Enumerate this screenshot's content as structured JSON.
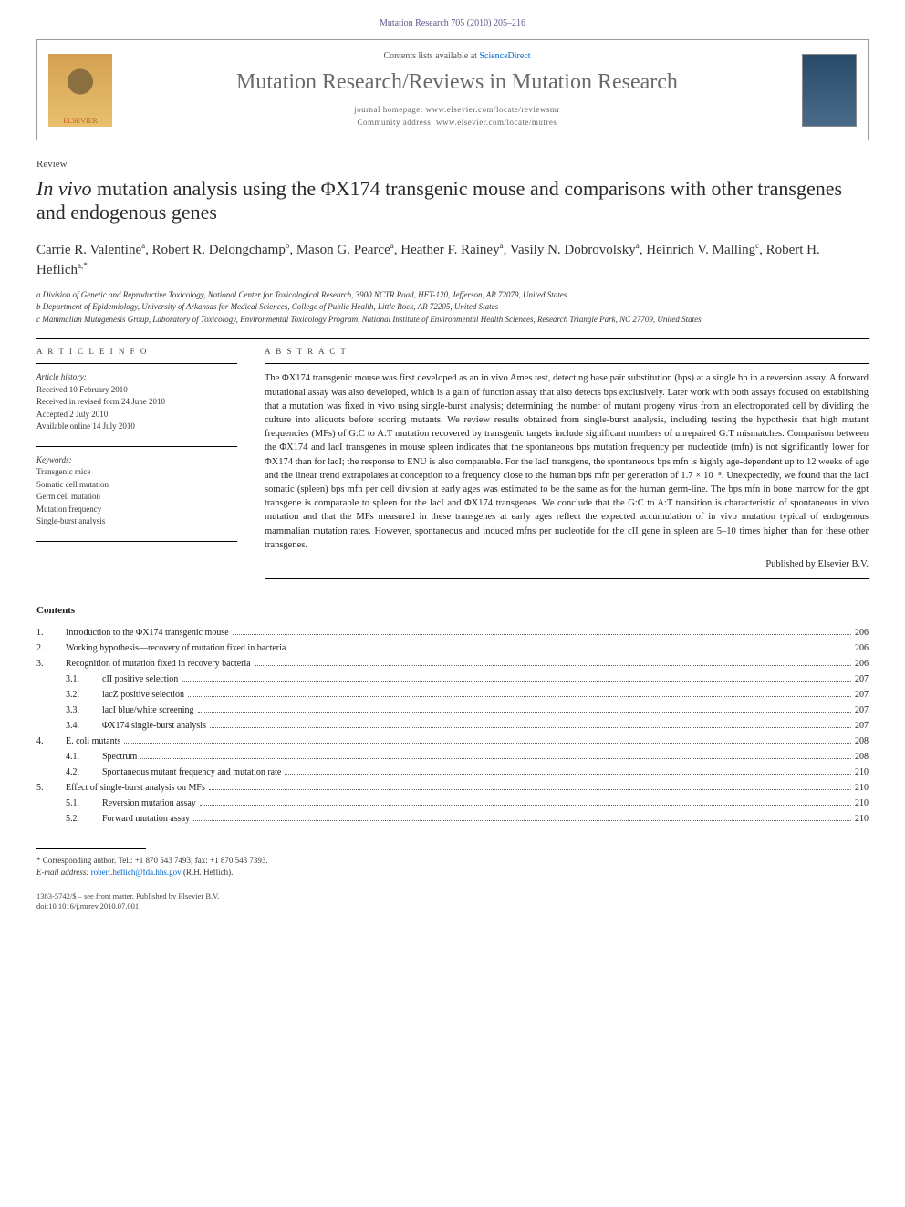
{
  "journal_ref": "Mutation Research 705 (2010) 205–216",
  "contents_available": "Contents lists available at ",
  "sciencedirect": "ScienceDirect",
  "journal_name": "Mutation Research/Reviews in Mutation Research",
  "homepage_label": "journal homepage: ",
  "homepage_url": "www.elsevier.com/locate/reviewsmr",
  "community_label": "Community address: ",
  "community_url": "www.elsevier.com/locate/mutres",
  "elsevier": "ELSEVIER",
  "article_type": "Review",
  "title_pre_italic": "In vivo",
  "title_rest": " mutation analysis using the ΦX174 transgenic mouse and comparisons with other transgenes and endogenous genes",
  "authors": [
    {
      "name": "Carrie R. Valentine",
      "aff": "a"
    },
    {
      "name": "Robert R. Delongchamp",
      "aff": "b"
    },
    {
      "name": "Mason G. Pearce",
      "aff": "a"
    },
    {
      "name": "Heather F. Rainey",
      "aff": "a"
    },
    {
      "name": "Vasily N. Dobrovolsky",
      "aff": "a"
    },
    {
      "name": "Heinrich V. Malling",
      "aff": "c"
    },
    {
      "name": "Robert H. Heflich",
      "aff": "a,*"
    }
  ],
  "affiliations": [
    "a Division of Genetic and Reproductive Toxicology, National Center for Toxicological Research, 3900 NCTR Road, HFT-120, Jefferson, AR 72079, United States",
    "b Department of Epidemiology, University of Arkansas for Medical Sciences, College of Public Health, Little Rock, AR 72205, United States",
    "c Mammalian Mutagenesis Group, Laboratory of Toxicology, Environmental Toxicology Program, National Institute of Environmental Health Sciences, Research Triangle Park, NC 27709, United States"
  ],
  "article_info_head": "A R T I C L E  I N F O",
  "abstract_head": "A B S T R A C T",
  "history_label": "Article history:",
  "history": [
    "Received 10 February 2010",
    "Received in revised form 24 June 2010",
    "Accepted 2 July 2010",
    "Available online 14 July 2010"
  ],
  "keywords_label": "Keywords:",
  "keywords": [
    "Transgenic mice",
    "Somatic cell mutation",
    "Germ cell mutation",
    "Mutation frequency",
    "Single-burst analysis"
  ],
  "abstract": "The ΦX174 transgenic mouse was first developed as an in vivo Ames test, detecting base pair substitution (bps) at a single bp in a reversion assay. A forward mutational assay was also developed, which is a gain of function assay that also detects bps exclusively. Later work with both assays focused on establishing that a mutation was fixed in vivo using single-burst analysis; determining the number of mutant progeny virus from an electroporated cell by dividing the culture into aliquots before scoring mutants. We review results obtained from single-burst analysis, including testing the hypothesis that high mutant frequencies (MFs) of G:C to A:T mutation recovered by transgenic targets include significant numbers of unrepaired G:T mismatches. Comparison between the ΦX174 and lacI transgenes in mouse spleen indicates that the spontaneous bps mutation frequency per nucleotide (mfn) is not significantly lower for ΦX174 than for lacI; the response to ENU is also comparable. For the lacI transgene, the spontaneous bps mfn is highly age-dependent up to 12 weeks of age and the linear trend extrapolates at conception to a frequency close to the human bps mfn per generation of 1.7 × 10⁻⁸. Unexpectedly, we found that the lacI somatic (spleen) bps mfn per cell division at early ages was estimated to be the same as for the human germ-line. The bps mfn in bone marrow for the gpt transgene is comparable to spleen for the lacI and ΦX174 transgenes. We conclude that the G:C to A:T transition is characteristic of spontaneous in vivo mutation and that the MFs measured in these transgenes at early ages reflect the expected accumulation of in vivo mutation typical of endogenous mammalian mutation rates. However, spontaneous and induced mfns per nucleotide for the cII gene in spleen are 5–10 times higher than for these other transgenes.",
  "published_by": "Published by Elsevier B.V.",
  "contents_head": "Contents",
  "toc": [
    {
      "num": "1.",
      "label": "Introduction to the ΦX174 transgenic mouse",
      "page": "206",
      "sub": []
    },
    {
      "num": "2.",
      "label": "Working hypothesis—recovery of mutation fixed in bacteria",
      "page": "206",
      "sub": []
    },
    {
      "num": "3.",
      "label": "Recognition of mutation fixed in recovery bacteria",
      "page": "206",
      "sub": [
        {
          "num": "3.1.",
          "label": "cII positive selection",
          "page": "207"
        },
        {
          "num": "3.2.",
          "label": "lacZ positive selection",
          "page": "207"
        },
        {
          "num": "3.3.",
          "label": "lacI blue/white screening",
          "page": "207"
        },
        {
          "num": "3.4.",
          "label": "ΦX174 single-burst analysis",
          "page": "207"
        }
      ]
    },
    {
      "num": "4.",
      "label": "E. coli mutants",
      "page": "208",
      "sub": [
        {
          "num": "4.1.",
          "label": "Spectrum",
          "page": "208"
        },
        {
          "num": "4.2.",
          "label": "Spontaneous mutant frequency and mutation rate",
          "page": "210"
        }
      ]
    },
    {
      "num": "5.",
      "label": "Effect of single-burst analysis on MFs",
      "page": "210",
      "sub": [
        {
          "num": "5.1.",
          "label": "Reversion mutation assay",
          "page": "210"
        },
        {
          "num": "5.2.",
          "label": "Forward mutation assay",
          "page": "210"
        }
      ]
    }
  ],
  "corr_label": "* Corresponding author. Tel.: +1 870 543 7493; fax: +1 870 543 7393.",
  "email_label": "E-mail address: ",
  "email": "robert.heflich@fda.hhs.gov",
  "email_name": " (R.H. Heflich).",
  "issn_line": "1383-5742/$ – see front matter. Published by Elsevier B.V.",
  "doi_line": "doi:10.1016/j.mrrev.2010.07.001"
}
